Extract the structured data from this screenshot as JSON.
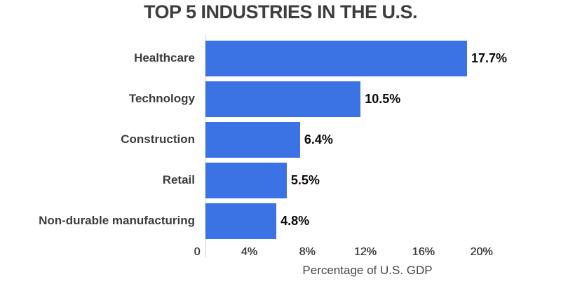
{
  "chart_data": {
    "type": "bar",
    "orientation": "horizontal",
    "title": "TOP 5 INDUSTRIES IN THE U.S.",
    "xlabel": "Percentage of U.S. GDP",
    "categories": [
      "Healthcare",
      "Technology",
      "Construction",
      "Retail",
      "Non-durable manufacturing"
    ],
    "values": [
      17.7,
      10.5,
      6.4,
      5.5,
      4.8
    ],
    "value_labels": [
      "17.7%",
      "10.5%",
      "6.4%",
      "5.5%",
      "4.8%"
    ],
    "x_ticks": [
      {
        "value": 0,
        "label": "0"
      },
      {
        "value": 4,
        "label": "4%"
      },
      {
        "value": 8,
        "label": "8%"
      },
      {
        "value": 12,
        "label": "12%"
      },
      {
        "value": 16,
        "label": "16%"
      },
      {
        "value": 20,
        "label": "20%"
      }
    ],
    "xlim": [
      0,
      20
    ],
    "bar_color": "#3c73e4",
    "background": "#ffffff",
    "grid": false,
    "legend": false
  }
}
